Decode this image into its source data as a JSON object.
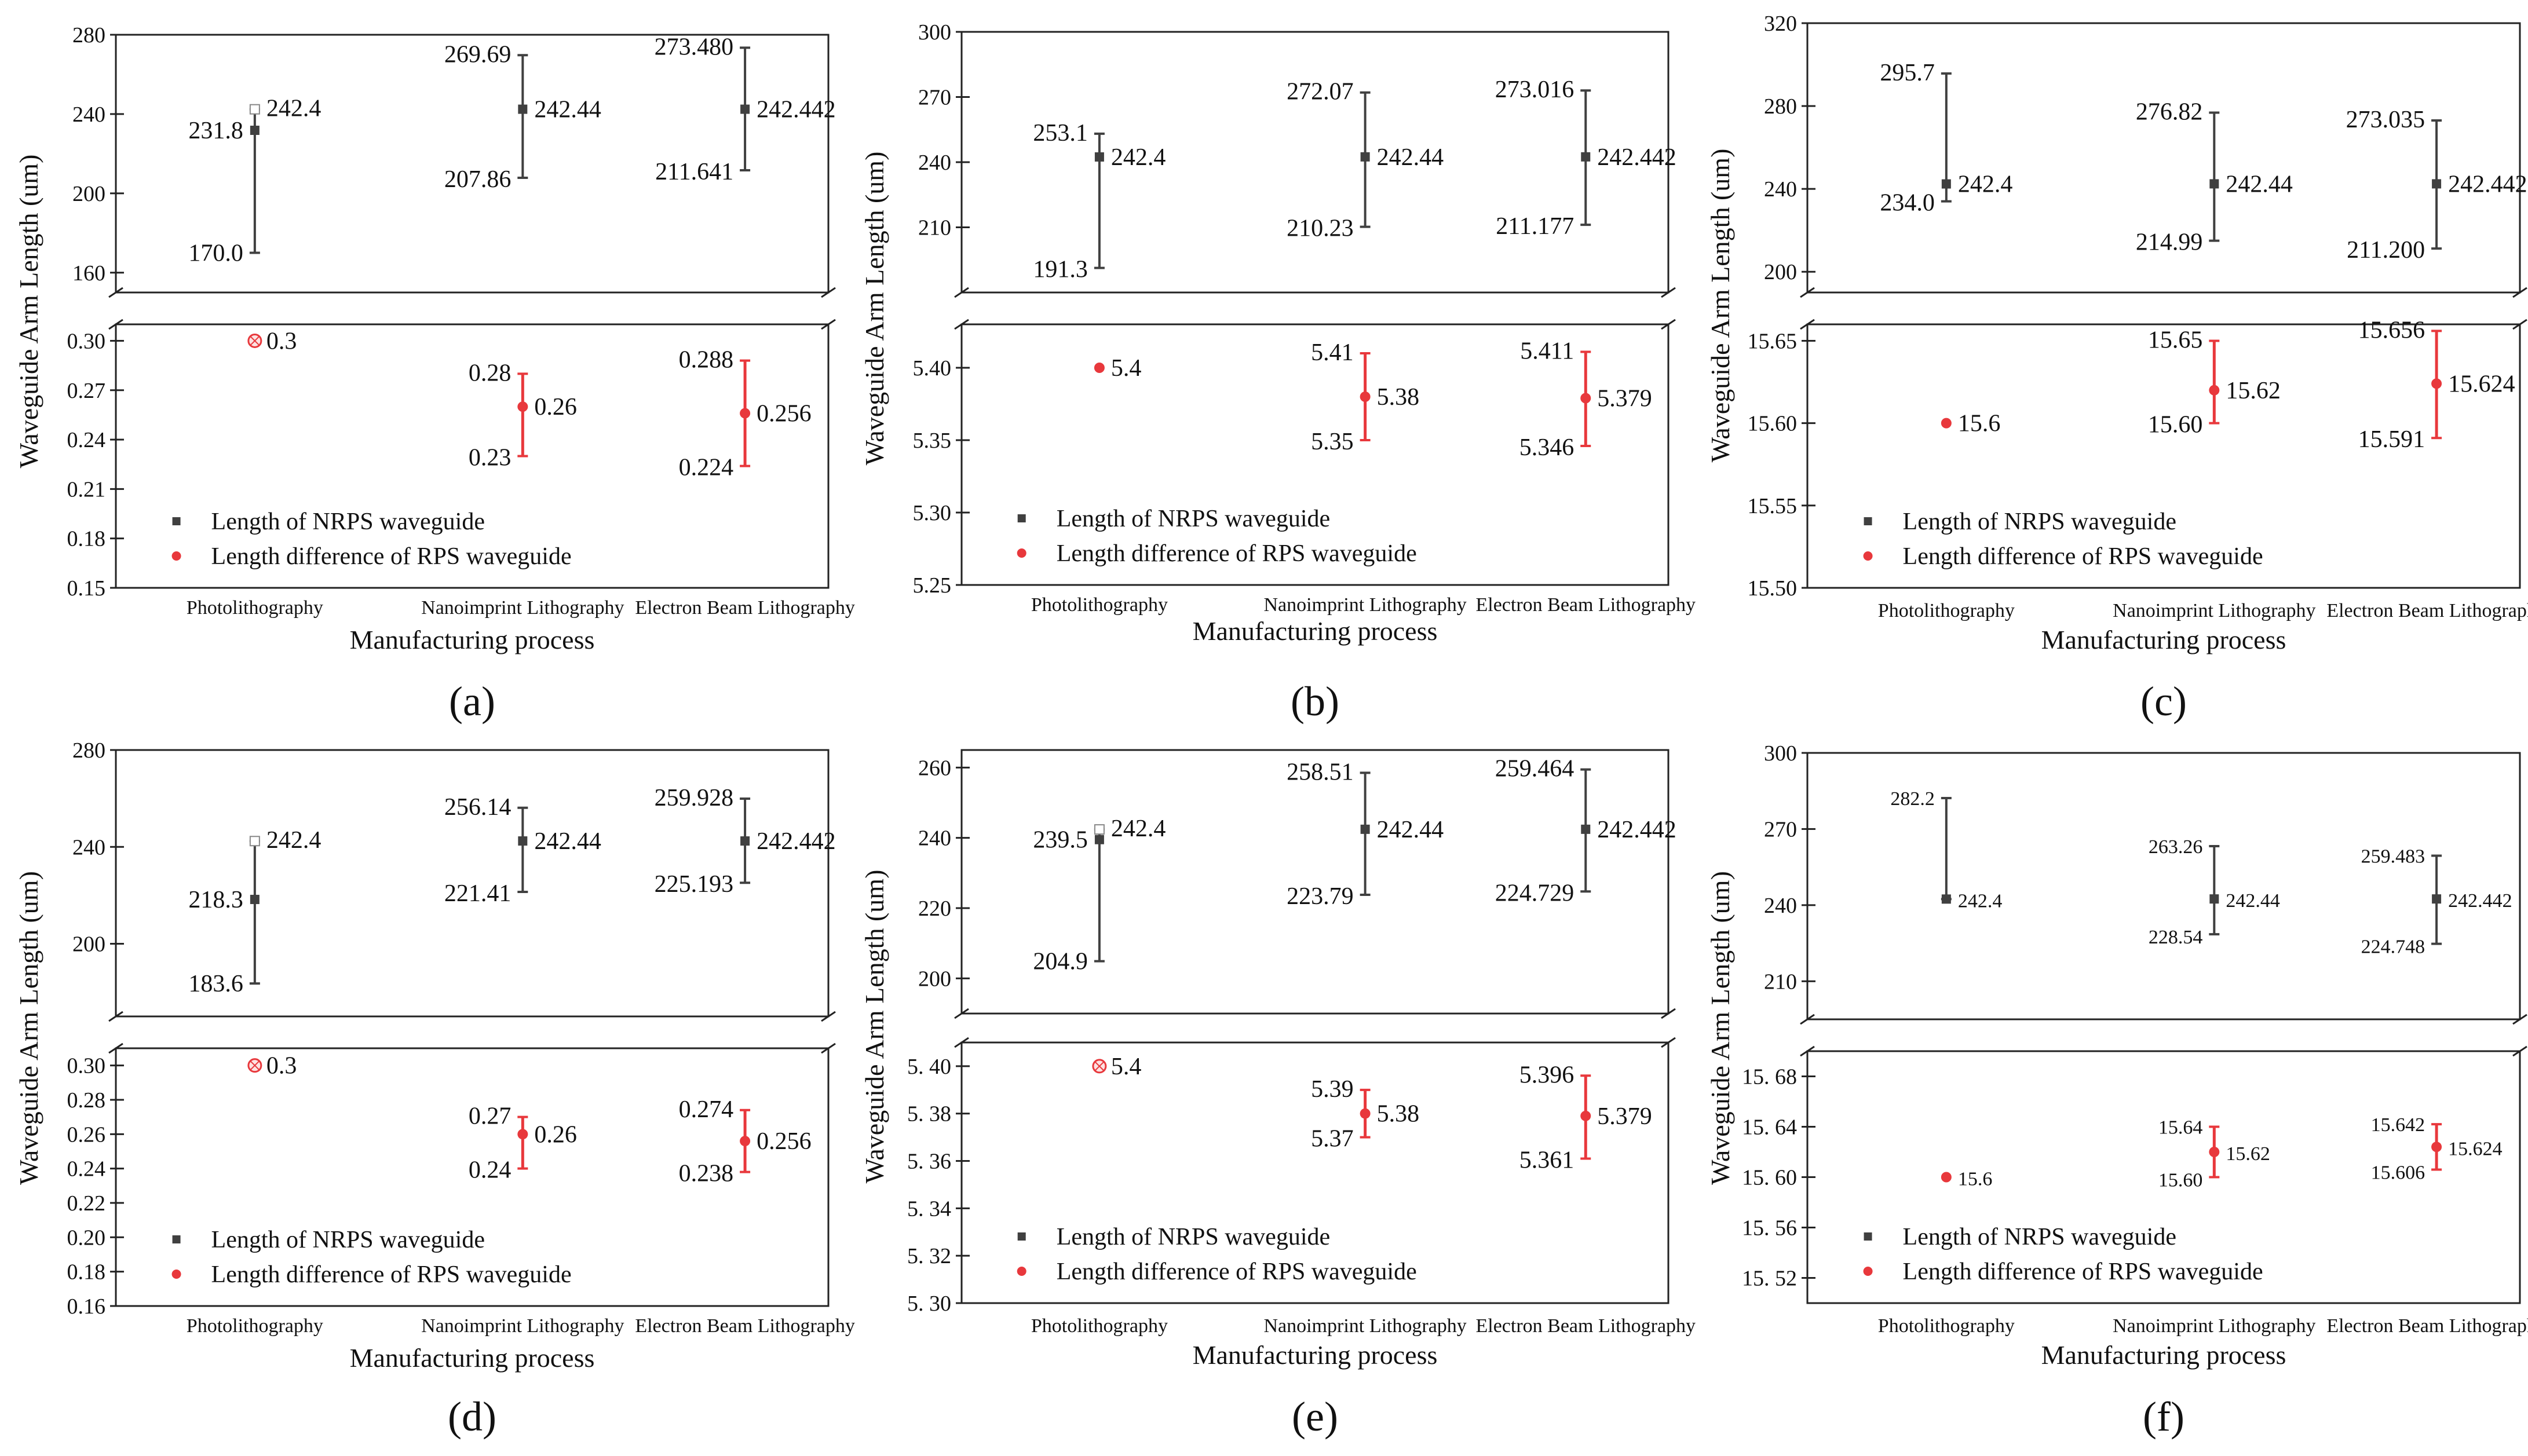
{
  "colors": {
    "nrps": "#404040",
    "rps": "#e8383c",
    "axis": "#222222"
  },
  "chart_data": [
    {
      "panel": "a",
      "type": "scatter-errorbar",
      "xlabel": "Manufacturing process",
      "ylabel": "Waveguide Arm Length (um)",
      "categories": [
        "Photolithography",
        "Nanoimprint Lithography",
        "Electron Beam Lithography"
      ],
      "legend": [
        "Length of NRPS waveguide",
        "Length difference of RPS waveguide"
      ],
      "top": {
        "ylim": [
          150,
          280
        ],
        "ticks": [
          "160",
          "200",
          "240",
          "280"
        ],
        "tick_values": [
          160,
          200,
          240,
          280
        ],
        "points": [
          {
            "value": 231.8,
            "lo": 170.0,
            "hi": 242.4,
            "labels": [
              "242.4",
              "231.8",
              "170.0"
            ],
            "hollow_hi": true
          },
          {
            "value": 242.44,
            "lo": 207.86,
            "hi": 269.69,
            "labels": [
              "242.44",
              "269.69",
              "207.86"
            ]
          },
          {
            "value": 242.442,
            "lo": 211.641,
            "hi": 273.48,
            "labels": [
              "242.442",
              "273.480",
              "211.641"
            ]
          }
        ]
      },
      "bottom": {
        "ylim": [
          0.15,
          0.31
        ],
        "ticks": [
          "0.15",
          "0.18",
          "0.21",
          "0.24",
          "0.27",
          "0.30"
        ],
        "tick_values": [
          0.15,
          0.18,
          0.21,
          0.24,
          0.27,
          0.3
        ],
        "points": [
          {
            "value": 0.3,
            "labels": [
              "0.3"
            ],
            "hollow": true
          },
          {
            "value": 0.26,
            "lo": 0.23,
            "hi": 0.28,
            "labels": [
              "0.26",
              "0.28",
              "0.23"
            ]
          },
          {
            "value": 0.256,
            "lo": 0.224,
            "hi": 0.288,
            "labels": [
              "0.256",
              "0.288",
              "0.224"
            ]
          }
        ]
      }
    },
    {
      "panel": "b",
      "type": "scatter-errorbar",
      "xlabel": "Manufacturing process",
      "ylabel": "Waveguide Arm Length (um)",
      "categories": [
        "Photolithography",
        "Nanoimprint Lithography",
        "Electron Beam Lithography"
      ],
      "legend": [
        "Length of NRPS waveguide",
        "Length difference of RPS waveguide"
      ],
      "top": {
        "ylim": [
          180,
          300
        ],
        "ticks": [
          "210",
          "240",
          "270",
          "300"
        ],
        "tick_values": [
          210,
          240,
          270,
          300
        ],
        "points": [
          {
            "value": 242.4,
            "lo": 191.3,
            "hi": 253.1,
            "labels": [
              "242.4",
              "253.1",
              "191.3"
            ]
          },
          {
            "value": 242.44,
            "lo": 210.23,
            "hi": 272.07,
            "labels": [
              "242.44",
              "272.07",
              "210.23"
            ]
          },
          {
            "value": 242.442,
            "lo": 211.177,
            "hi": 273.016,
            "labels": [
              "242.442",
              "273.016",
              "211.177"
            ]
          }
        ]
      },
      "bottom": {
        "ylim": [
          5.25,
          5.43
        ],
        "ticks": [
          "5.25",
          "5.30",
          "5.35",
          "5.40"
        ],
        "tick_values": [
          5.25,
          5.3,
          5.35,
          5.4
        ],
        "points": [
          {
            "value": 5.4,
            "labels": [
              "5.4"
            ]
          },
          {
            "value": 5.38,
            "lo": 5.35,
            "hi": 5.41,
            "labels": [
              "5.38",
              "5.41",
              "5.35"
            ]
          },
          {
            "value": 5.379,
            "lo": 5.346,
            "hi": 5.411,
            "labels": [
              "5.379",
              "5.411",
              "5.346"
            ]
          }
        ]
      }
    },
    {
      "panel": "c",
      "type": "scatter-errorbar",
      "xlabel": "Manufacturing process",
      "ylabel": "Waveguide Arm Length (um)",
      "categories": [
        "Photolithography",
        "Nanoimprint Lithography",
        "Electron Beam Lithography"
      ],
      "legend": [
        "Length of NRPS waveguide",
        "Length difference of RPS waveguide"
      ],
      "top": {
        "ylim": [
          190,
          320
        ],
        "ticks": [
          "200",
          "240",
          "280",
          "320"
        ],
        "tick_values": [
          200,
          240,
          280,
          320
        ],
        "points": [
          {
            "value": 242.4,
            "lo": 234.0,
            "hi": 295.7,
            "labels": [
              "242.4",
              "295.7",
              "234.0"
            ]
          },
          {
            "value": 242.44,
            "lo": 214.99,
            "hi": 276.82,
            "labels": [
              "242.44",
              "276.82",
              "214.99"
            ]
          },
          {
            "value": 242.442,
            "lo": 211.2,
            "hi": 273.035,
            "labels": [
              "242.442",
              "273.035",
              "211.200"
            ]
          }
        ]
      },
      "bottom": {
        "ylim": [
          15.5,
          15.66
        ],
        "ticks": [
          "15.50",
          "15.55",
          "15.60",
          "15.65"
        ],
        "tick_values": [
          15.5,
          15.55,
          15.6,
          15.65
        ],
        "points": [
          {
            "value": 15.6,
            "labels": [
              "15.6"
            ]
          },
          {
            "value": 15.62,
            "lo": 15.6,
            "hi": 15.65,
            "labels": [
              "15.62",
              "15.65",
              "15.60"
            ]
          },
          {
            "value": 15.624,
            "lo": 15.591,
            "hi": 15.656,
            "labels": [
              "15.624",
              "15.656",
              "15.591"
            ]
          }
        ]
      }
    },
    {
      "panel": "d",
      "type": "scatter-errorbar",
      "xlabel": "Manufacturing process",
      "ylabel": "Waveguide Arm Length (um)",
      "categories": [
        "Photolithography",
        "Nanoimprint Lithography",
        "Electron Beam Lithography"
      ],
      "legend": [
        "Length of NRPS waveguide",
        "Length difference of RPS waveguide"
      ],
      "top": {
        "ylim": [
          170,
          280
        ],
        "ticks": [
          "200",
          "240",
          "280"
        ],
        "tick_values": [
          200,
          240,
          280
        ],
        "points": [
          {
            "value": 218.3,
            "lo": 183.6,
            "hi": 242.4,
            "labels": [
              "242.4",
              "218.3",
              "183.6"
            ],
            "hollow_hi": true
          },
          {
            "value": 242.44,
            "lo": 221.41,
            "hi": 256.14,
            "labels": [
              "242.44",
              "256.14",
              "221.41"
            ]
          },
          {
            "value": 242.442,
            "lo": 225.193,
            "hi": 259.928,
            "labels": [
              "242.442",
              "259.928",
              "225.193"
            ]
          }
        ]
      },
      "bottom": {
        "ylim": [
          0.16,
          0.31
        ],
        "ticks": [
          "0.16",
          "0.18",
          "0.20",
          "0.22",
          "0.24",
          "0.26",
          "0.28",
          "0.30"
        ],
        "tick_values": [
          0.16,
          0.18,
          0.2,
          0.22,
          0.24,
          0.26,
          0.28,
          0.3
        ],
        "points": [
          {
            "value": 0.3,
            "labels": [
              "0.3"
            ],
            "hollow": true
          },
          {
            "value": 0.26,
            "lo": 0.24,
            "hi": 0.27,
            "labels": [
              "0.26",
              "0.27",
              "0.24"
            ]
          },
          {
            "value": 0.256,
            "lo": 0.238,
            "hi": 0.274,
            "labels": [
              "0.256",
              "0.274",
              "0.238"
            ]
          }
        ]
      }
    },
    {
      "panel": "e",
      "type": "scatter-errorbar",
      "xlabel": "Manufacturing process",
      "ylabel": "Waveguide Arm Length (um)",
      "categories": [
        "Photolithography",
        "Nanoimprint Lithography",
        "Electron Beam Lithography"
      ],
      "legend": [
        "Length of NRPS waveguide",
        "Length difference of RPS waveguide"
      ],
      "top": {
        "ylim": [
          190,
          265
        ],
        "ticks": [
          "200",
          "220",
          "240",
          "260"
        ],
        "tick_values": [
          200,
          220,
          240,
          260
        ],
        "points": [
          {
            "value": 239.5,
            "lo": 204.9,
            "hi": 242.4,
            "labels": [
              "242.4",
              "239.5",
              "204.9"
            ],
            "hollow_hi": true
          },
          {
            "value": 242.44,
            "lo": 223.79,
            "hi": 258.51,
            "labels": [
              "242.44",
              "258.51",
              "223.79"
            ]
          },
          {
            "value": 242.442,
            "lo": 224.729,
            "hi": 259.464,
            "labels": [
              "242.442",
              "259.464",
              "224.729"
            ]
          }
        ]
      },
      "bottom": {
        "ylim": [
          5.3,
          5.41
        ],
        "ticks": [
          "5. 30",
          "5. 32",
          "5. 34",
          "5. 36",
          "5. 38",
          "5. 40"
        ],
        "tick_values": [
          5.3,
          5.32,
          5.34,
          5.36,
          5.38,
          5.4
        ],
        "points": [
          {
            "value": 5.4,
            "labels": [
              "5.4"
            ],
            "hollow": true
          },
          {
            "value": 5.38,
            "lo": 5.37,
            "hi": 5.39,
            "labels": [
              "5.38",
              "5.39",
              "5.37"
            ]
          },
          {
            "value": 5.379,
            "lo": 5.361,
            "hi": 5.396,
            "labels": [
              "5.379",
              "5.396",
              "5.361"
            ]
          }
        ]
      }
    },
    {
      "panel": "f",
      "type": "scatter-errorbar",
      "xlabel": "Manufacturing process",
      "ylabel": "Waveguide Arm Length (um)",
      "categories": [
        "Photolithography",
        "Nanoimprint Lithography",
        "Electron Beam Lithography"
      ],
      "legend": [
        "Length of NRPS waveguide",
        "Length difference of RPS waveguide"
      ],
      "top": {
        "ylim": [
          195,
          300
        ],
        "ticks": [
          "210",
          "240",
          "270",
          "300"
        ],
        "tick_values": [
          210,
          240,
          270,
          300
        ],
        "points": [
          {
            "value": 242.4,
            "lo": 242.4,
            "hi": 282.2,
            "labels": [
              "242.4",
              "282.2"
            ],
            "small_labels": true
          },
          {
            "value": 242.44,
            "lo": 228.54,
            "hi": 263.26,
            "labels": [
              "242.44",
              "263.26",
              "228.54"
            ],
            "small_labels": true
          },
          {
            "value": 242.442,
            "lo": 224.748,
            "hi": 259.483,
            "labels": [
              "242.442",
              "259.483",
              "224.748"
            ],
            "small_labels": true
          }
        ]
      },
      "bottom": {
        "ylim": [
          15.5,
          15.7
        ],
        "ticks": [
          "15. 52",
          "15. 56",
          "15. 60",
          "15. 64",
          "15. 68"
        ],
        "tick_values": [
          15.52,
          15.56,
          15.6,
          15.64,
          15.68
        ],
        "points": [
          {
            "value": 15.6,
            "labels": [
              "15.6"
            ],
            "small_labels": true
          },
          {
            "value": 15.62,
            "lo": 15.6,
            "hi": 15.64,
            "labels": [
              "15.62",
              "15.64",
              "15.60"
            ],
            "small_labels": true
          },
          {
            "value": 15.624,
            "lo": 15.606,
            "hi": 15.642,
            "labels": [
              "15.624",
              "15.642",
              "15.606"
            ],
            "small_labels": true
          }
        ]
      }
    }
  ],
  "panel_labels": [
    "(a)",
    "(b)",
    "(c)",
    "(d)",
    "(e)",
    "(f)"
  ]
}
